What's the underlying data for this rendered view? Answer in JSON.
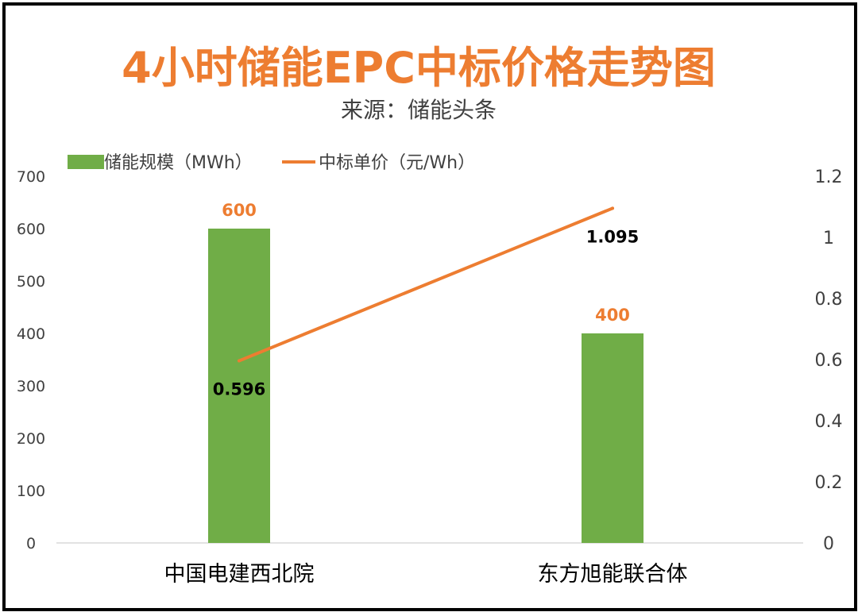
{
  "chart_data": {
    "type": "bar+line",
    "title": "4小时储能EPC中标价格走势图",
    "subtitle": "来源：储能头条",
    "categories": [
      "中国电建西北院",
      "东方旭能联合体"
    ],
    "series": [
      {
        "name": "储能规模（MWh）",
        "type": "bar",
        "axis": "left",
        "values": [
          600,
          400
        ],
        "labels": [
          "600",
          "400"
        ]
      },
      {
        "name": "中标单价（元/Wh）",
        "type": "line",
        "axis": "right",
        "values": [
          0.596,
          1.095
        ],
        "labels": [
          "0.596",
          "1.095"
        ]
      }
    ],
    "y_left": {
      "min": 0,
      "max": 700,
      "step": 100,
      "ticks": [
        "0",
        "100",
        "200",
        "300",
        "400",
        "500",
        "600",
        "700"
      ]
    },
    "y_right": {
      "min": 0,
      "max": 1.2,
      "step": 0.2,
      "ticks": [
        "0",
        "0.2",
        "0.4",
        "0.6",
        "0.8",
        "1",
        "1.2"
      ]
    },
    "legend_position": "top-left",
    "grid": false,
    "colors": {
      "bar": "#70ad47",
      "line": "#ed7d31",
      "title": "#ed7d31",
      "bar_label": "#ed7d31",
      "line_label": "#000000",
      "text": "#404040"
    }
  }
}
